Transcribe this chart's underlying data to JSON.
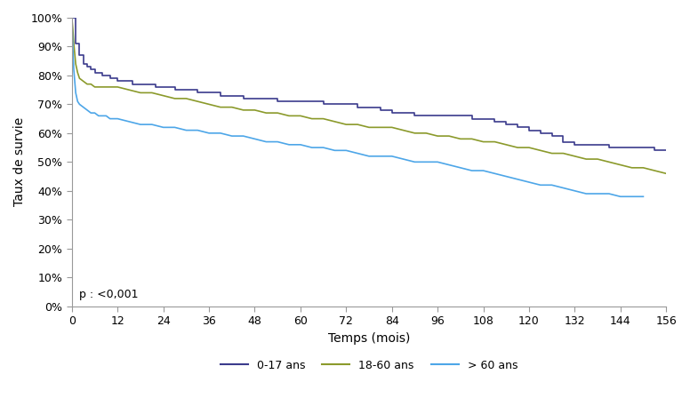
{
  "title": "",
  "xlabel": "Temps (mois)",
  "ylabel": "Taux de survie",
  "xlim": [
    0,
    156
  ],
  "ylim": [
    0,
    1.0
  ],
  "xticks": [
    0,
    12,
    24,
    36,
    48,
    60,
    72,
    84,
    96,
    108,
    120,
    132,
    144,
    156
  ],
  "yticks": [
    0.0,
    0.1,
    0.2,
    0.3,
    0.4,
    0.5,
    0.6,
    0.7,
    0.8,
    0.9,
    1.0
  ],
  "pvalue_text": "p : <0,001",
  "legend_labels": [
    "0-17 ans",
    "18-60 ans",
    "> 60 ans"
  ],
  "line_colors": [
    "#3b3b8c",
    "#8b9a2b",
    "#4da6e8"
  ],
  "background_color": "#ffffff",
  "curve_017": {
    "t": [
      0,
      1,
      2,
      3,
      4,
      5,
      6,
      7,
      8,
      9,
      10,
      11,
      12,
      14,
      16,
      18,
      20,
      22,
      24,
      27,
      30,
      33,
      36,
      39,
      42,
      45,
      48,
      51,
      54,
      57,
      60,
      63,
      66,
      69,
      72,
      75,
      78,
      81,
      84,
      87,
      90,
      93,
      96,
      99,
      102,
      105,
      108,
      111,
      114,
      117,
      120,
      123,
      126,
      129,
      132,
      135,
      138,
      141,
      144,
      147,
      150,
      153,
      156
    ],
    "s": [
      1.0,
      0.91,
      0.87,
      0.84,
      0.83,
      0.82,
      0.81,
      0.81,
      0.8,
      0.8,
      0.79,
      0.79,
      0.78,
      0.78,
      0.77,
      0.77,
      0.77,
      0.76,
      0.76,
      0.75,
      0.75,
      0.74,
      0.74,
      0.73,
      0.73,
      0.72,
      0.72,
      0.72,
      0.71,
      0.71,
      0.71,
      0.71,
      0.7,
      0.7,
      0.7,
      0.69,
      0.69,
      0.68,
      0.67,
      0.67,
      0.66,
      0.66,
      0.66,
      0.66,
      0.66,
      0.65,
      0.65,
      0.64,
      0.63,
      0.62,
      0.61,
      0.6,
      0.59,
      0.57,
      0.56,
      0.56,
      0.56,
      0.55,
      0.55,
      0.55,
      0.55,
      0.54,
      0.54
    ]
  },
  "curve_1860": {
    "t": [
      0,
      0.25,
      0.5,
      1,
      1.5,
      2,
      3,
      4,
      5,
      6,
      7,
      8,
      9,
      10,
      11,
      12,
      15,
      18,
      21,
      24,
      27,
      30,
      33,
      36,
      39,
      42,
      45,
      48,
      51,
      54,
      57,
      60,
      63,
      66,
      69,
      72,
      75,
      78,
      81,
      84,
      87,
      90,
      93,
      96,
      99,
      102,
      105,
      108,
      111,
      114,
      117,
      120,
      123,
      126,
      129,
      132,
      135,
      138,
      141,
      144,
      147,
      150,
      153,
      156
    ],
    "s": [
      1.0,
      0.96,
      0.91,
      0.84,
      0.81,
      0.79,
      0.78,
      0.77,
      0.77,
      0.76,
      0.76,
      0.76,
      0.76,
      0.76,
      0.76,
      0.76,
      0.75,
      0.74,
      0.74,
      0.73,
      0.72,
      0.72,
      0.71,
      0.7,
      0.69,
      0.69,
      0.68,
      0.68,
      0.67,
      0.67,
      0.66,
      0.66,
      0.65,
      0.65,
      0.64,
      0.63,
      0.63,
      0.62,
      0.62,
      0.62,
      0.61,
      0.6,
      0.6,
      0.59,
      0.59,
      0.58,
      0.58,
      0.57,
      0.57,
      0.56,
      0.55,
      0.55,
      0.54,
      0.53,
      0.53,
      0.52,
      0.51,
      0.51,
      0.5,
      0.49,
      0.48,
      0.48,
      0.47,
      0.46
    ]
  },
  "curve_60plus": {
    "t": [
      0,
      0.25,
      0.5,
      1,
      1.5,
      2,
      3,
      4,
      5,
      6,
      7,
      8,
      9,
      10,
      11,
      12,
      15,
      18,
      21,
      24,
      27,
      30,
      33,
      36,
      39,
      42,
      45,
      48,
      51,
      54,
      57,
      60,
      63,
      66,
      69,
      72,
      75,
      78,
      81,
      84,
      87,
      90,
      93,
      96,
      99,
      102,
      105,
      108,
      111,
      114,
      117,
      120,
      123,
      126,
      129,
      132,
      135,
      138,
      141,
      144,
      147,
      150
    ],
    "s": [
      1.0,
      0.9,
      0.82,
      0.74,
      0.71,
      0.7,
      0.69,
      0.68,
      0.67,
      0.67,
      0.66,
      0.66,
      0.66,
      0.65,
      0.65,
      0.65,
      0.64,
      0.63,
      0.63,
      0.62,
      0.62,
      0.61,
      0.61,
      0.6,
      0.6,
      0.59,
      0.59,
      0.58,
      0.57,
      0.57,
      0.56,
      0.56,
      0.55,
      0.55,
      0.54,
      0.54,
      0.53,
      0.52,
      0.52,
      0.52,
      0.51,
      0.5,
      0.5,
      0.5,
      0.49,
      0.48,
      0.47,
      0.47,
      0.46,
      0.45,
      0.44,
      0.43,
      0.42,
      0.42,
      0.41,
      0.4,
      0.39,
      0.39,
      0.39,
      0.38,
      0.38,
      0.38
    ]
  }
}
